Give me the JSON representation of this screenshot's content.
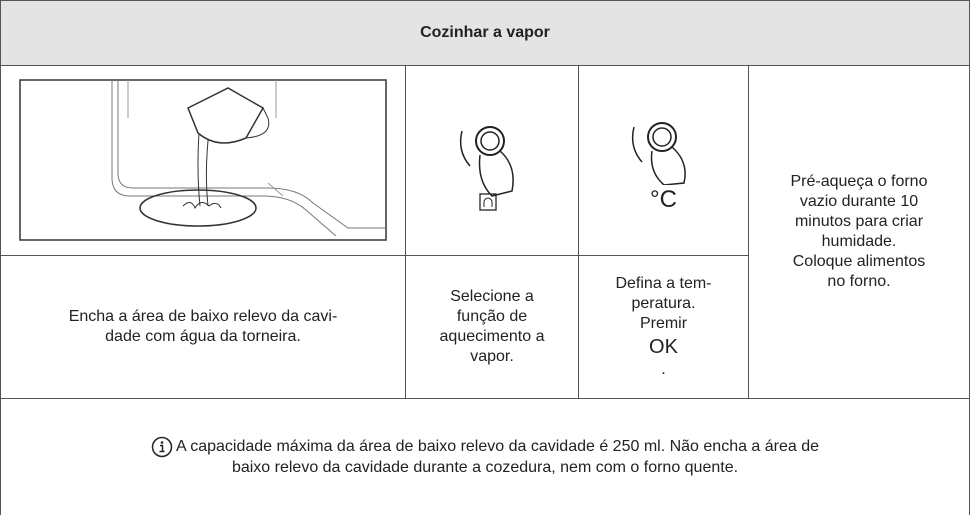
{
  "header": {
    "title": "Cozinhar a vapor"
  },
  "steps": [
    {
      "lines": [
        "Encha a área de baixo relevo da cavi-",
        "dade com água da torneira."
      ]
    },
    {
      "lines": [
        "Selecione a",
        "função de",
        "aquecimento a",
        "vapor."
      ]
    },
    {
      "lines": [
        "Defina a tem-",
        "peratura.",
        "Premir",
        "OK",
        "."
      ],
      "icon_label": "°C"
    },
    {
      "lines": [
        "Pré-aqueça o forno",
        "vazio durante 10",
        "minutos para criar",
        "humidade.",
        "Coloque alimentos",
        "no forno."
      ]
    }
  ],
  "note": {
    "lines": [
      "A capacidade máxima da área de baixo relevo da cavidade é 250 ml. Não encha a área de",
      "baixo relevo da cavidade durante a cozedura, nem com o forno quente."
    ]
  }
}
